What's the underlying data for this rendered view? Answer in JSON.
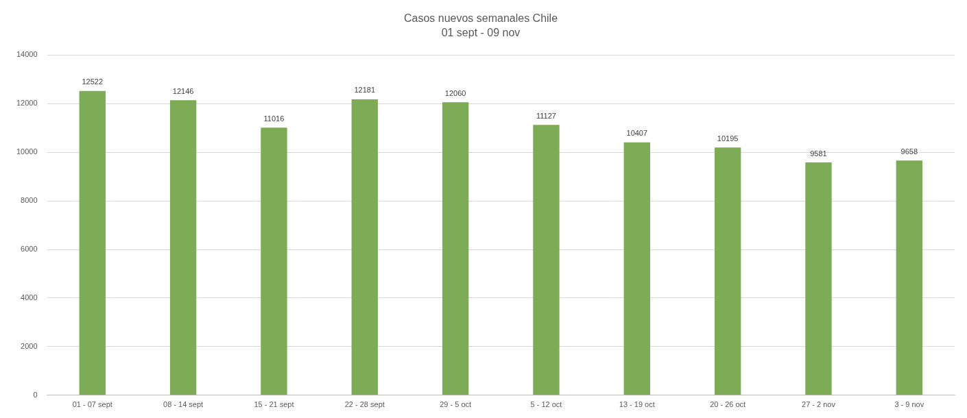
{
  "chart_data": {
    "type": "bar",
    "title": "Casos nuevos semanales Chile",
    "subtitle": "01 sept - 09 nov",
    "categories": [
      "01 - 07 sept",
      "08 - 14 sept",
      "15 - 21 sept",
      "22 - 28 sept",
      "29 - 5 oct",
      "5 - 12 oct",
      "13 - 19 oct",
      "20 - 26 oct",
      "27 - 2 nov",
      "3 - 9 nov"
    ],
    "values": [
      12522,
      12146,
      11016,
      12181,
      12060,
      11127,
      10407,
      10195,
      9581,
      9658
    ],
    "color": "#7eab55",
    "ylim": [
      0,
      14000
    ],
    "yticks": [
      0,
      2000,
      4000,
      6000,
      8000,
      10000,
      12000,
      14000
    ],
    "grid": "y",
    "legend": false,
    "data_labels": true
  }
}
